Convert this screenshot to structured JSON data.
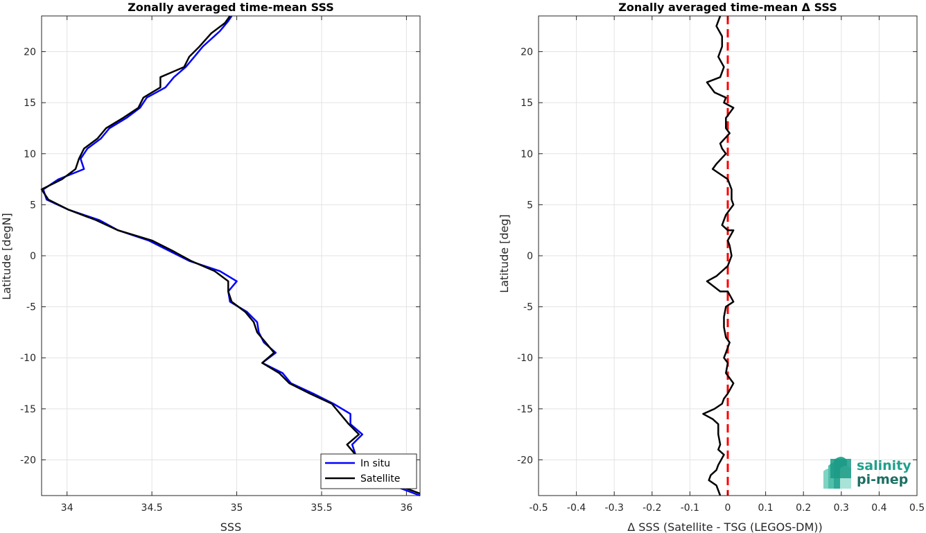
{
  "chart_data": [
    {
      "type": "line",
      "title": "Zonally averaged time-mean SSS",
      "xlabel": "SSS",
      "ylabel": "Latitude [degN]",
      "xlim": [
        33.85,
        36.08
      ],
      "ylim": [
        -23.5,
        23.5
      ],
      "xticks": [
        "34",
        "34.5",
        "35",
        "35.5",
        "36"
      ],
      "yticks": [
        "20",
        "15",
        "10",
        "5",
        "0",
        "-5",
        "-10",
        "-15",
        "-20"
      ],
      "grid": true,
      "legend": {
        "placement": "bottom-right",
        "entries": [
          "In situ",
          "Satellite"
        ]
      },
      "series": [
        {
          "name": "In situ",
          "color": "#0000ff",
          "points": [
            [
              34.97,
              23.5
            ],
            [
              34.95,
              23.0
            ],
            [
              34.9,
              22.0
            ],
            [
              34.8,
              20.5
            ],
            [
              34.75,
              19.5
            ],
            [
              34.7,
              18.5
            ],
            [
              34.63,
              17.5
            ],
            [
              34.58,
              16.5
            ],
            [
              34.47,
              15.5
            ],
            [
              34.43,
              14.5
            ],
            [
              34.35,
              13.5
            ],
            [
              34.25,
              12.5
            ],
            [
              34.2,
              11.5
            ],
            [
              34.12,
              10.5
            ],
            [
              34.08,
              9.5
            ],
            [
              34.1,
              8.5
            ],
            [
              33.95,
              7.5
            ],
            [
              33.86,
              6.5
            ],
            [
              33.88,
              5.5
            ],
            [
              34.01,
              4.5
            ],
            [
              34.19,
              3.5
            ],
            [
              34.3,
              2.5
            ],
            [
              34.48,
              1.5
            ],
            [
              34.6,
              0.5
            ],
            [
              34.72,
              -0.5
            ],
            [
              34.9,
              -1.5
            ],
            [
              35.0,
              -2.5
            ],
            [
              34.95,
              -3.5
            ],
            [
              34.96,
              -4.5
            ],
            [
              35.06,
              -5.5
            ],
            [
              35.12,
              -6.5
            ],
            [
              35.13,
              -7.5
            ],
            [
              35.16,
              -8.5
            ],
            [
              35.23,
              -9.5
            ],
            [
              35.15,
              -10.5
            ],
            [
              35.27,
              -11.5
            ],
            [
              35.32,
              -12.5
            ],
            [
              35.45,
              -13.5
            ],
            [
              35.57,
              -14.5
            ],
            [
              35.67,
              -15.5
            ],
            [
              35.67,
              -16.5
            ],
            [
              35.74,
              -17.5
            ],
            [
              35.68,
              -18.5
            ],
            [
              35.7,
              -19.5
            ],
            [
              35.73,
              -20.5
            ],
            [
              35.8,
              -21.5
            ],
            [
              35.92,
              -22.5
            ],
            [
              36.08,
              -23.5
            ]
          ]
        },
        {
          "name": "Satellite",
          "color": "#000000",
          "points": [
            [
              34.96,
              23.5
            ],
            [
              34.93,
              22.8
            ],
            [
              34.85,
              21.8
            ],
            [
              34.78,
              20.5
            ],
            [
              34.72,
              19.5
            ],
            [
              34.69,
              18.5
            ],
            [
              34.55,
              17.5
            ],
            [
              34.55,
              16.5
            ],
            [
              34.45,
              15.5
            ],
            [
              34.42,
              14.5
            ],
            [
              34.33,
              13.5
            ],
            [
              34.23,
              12.5
            ],
            [
              34.18,
              11.5
            ],
            [
              34.1,
              10.5
            ],
            [
              34.07,
              9.5
            ],
            [
              34.05,
              8.5
            ],
            [
              33.97,
              7.5
            ],
            [
              33.85,
              6.5
            ],
            [
              33.89,
              5.5
            ],
            [
              34.01,
              4.5
            ],
            [
              34.17,
              3.5
            ],
            [
              34.3,
              2.5
            ],
            [
              34.5,
              1.5
            ],
            [
              34.62,
              0.5
            ],
            [
              34.73,
              -0.5
            ],
            [
              34.87,
              -1.5
            ],
            [
              34.95,
              -2.5
            ],
            [
              34.95,
              -3.5
            ],
            [
              34.97,
              -4.5
            ],
            [
              35.05,
              -5.5
            ],
            [
              35.1,
              -6.5
            ],
            [
              35.12,
              -7.5
            ],
            [
              35.17,
              -8.5
            ],
            [
              35.22,
              -9.5
            ],
            [
              35.15,
              -10.5
            ],
            [
              35.25,
              -11.5
            ],
            [
              35.31,
              -12.5
            ],
            [
              35.43,
              -13.5
            ],
            [
              35.56,
              -14.5
            ],
            [
              35.61,
              -15.5
            ],
            [
              35.66,
              -16.5
            ],
            [
              35.72,
              -17.5
            ],
            [
              35.65,
              -18.5
            ],
            [
              35.7,
              -19.5
            ],
            [
              35.72,
              -20.5
            ],
            [
              35.8,
              -21.5
            ],
            [
              35.95,
              -22.5
            ],
            [
              36.08,
              -23.3
            ]
          ]
        }
      ]
    },
    {
      "type": "line",
      "title": "Zonally averaged time-mean Δ SSS",
      "xlabel": "Δ SSS (Satellite - TSG (LEGOS-DM))",
      "ylabel": "Latitude [deg]",
      "xlim": [
        -0.5,
        0.5
      ],
      "ylim": [
        -23.5,
        23.5
      ],
      "xticks": [
        "-0.5",
        "-0.4",
        "-0.3",
        "-0.2",
        "-0.1",
        "0",
        "0.1",
        "0.2",
        "0.3",
        "0.4",
        "0.5"
      ],
      "yticks": [
        "20",
        "15",
        "10",
        "5",
        "0",
        "-5",
        "-10",
        "-15",
        "-20"
      ],
      "grid": true,
      "reference_line": {
        "x": 0,
        "color": "#ff0000",
        "style": "dashed"
      },
      "series": [
        {
          "color": "#000000",
          "points": [
            [
              -0.02,
              23.5
            ],
            [
              -0.03,
              22.5
            ],
            [
              -0.015,
              21.5
            ],
            [
              -0.015,
              20.5
            ],
            [
              -0.025,
              19.5
            ],
            [
              -0.01,
              18.5
            ],
            [
              -0.02,
              17.5
            ],
            [
              -0.055,
              17.0
            ],
            [
              -0.035,
              16.0
            ],
            [
              -0.005,
              15.5
            ],
            [
              -0.01,
              15.0
            ],
            [
              0.015,
              14.5
            ],
            [
              -0.005,
              13.5
            ],
            [
              -0.005,
              12.5
            ],
            [
              0.005,
              12.0
            ],
            [
              -0.02,
              11.0
            ],
            [
              -0.015,
              10.5
            ],
            [
              -0.005,
              10.0
            ],
            [
              -0.03,
              9.0
            ],
            [
              -0.04,
              8.5
            ],
            [
              0.0,
              7.5
            ],
            [
              0.01,
              6.5
            ],
            [
              0.01,
              5.5
            ],
            [
              0.015,
              5.0
            ],
            [
              0.005,
              4.5
            ],
            [
              -0.005,
              4.0
            ],
            [
              -0.01,
              3.5
            ],
            [
              -0.015,
              3.0
            ],
            [
              0.0,
              2.5
            ],
            [
              0.015,
              2.5
            ],
            [
              0.0,
              1.5
            ],
            [
              0.005,
              1.0
            ],
            [
              0.01,
              0.0
            ],
            [
              0.005,
              -0.5
            ],
            [
              0.0,
              -1.0
            ],
            [
              -0.03,
              -2.0
            ],
            [
              -0.055,
              -2.5
            ],
            [
              -0.02,
              -3.5
            ],
            [
              0.0,
              -3.5
            ],
            [
              0.015,
              -4.5
            ],
            [
              -0.005,
              -5.0
            ],
            [
              -0.01,
              -6.0
            ],
            [
              -0.01,
              -7.0
            ],
            [
              -0.005,
              -8.0
            ],
            [
              0.005,
              -8.5
            ],
            [
              -0.005,
              -9.5
            ],
            [
              -0.01,
              -10.0
            ],
            [
              0.0,
              -10.5
            ],
            [
              -0.005,
              -11.5
            ],
            [
              0.015,
              -12.5
            ],
            [
              0.0,
              -13.5
            ],
            [
              -0.01,
              -14.0
            ],
            [
              -0.015,
              -14.5
            ],
            [
              -0.035,
              -15.0
            ],
            [
              -0.065,
              -15.5
            ],
            [
              -0.04,
              -16.0
            ],
            [
              -0.025,
              -16.5
            ],
            [
              -0.025,
              -17.5
            ],
            [
              -0.02,
              -18.5
            ],
            [
              -0.025,
              -19.0
            ],
            [
              -0.01,
              -19.5
            ],
            [
              -0.025,
              -20.5
            ],
            [
              -0.03,
              -21.0
            ],
            [
              -0.045,
              -21.5
            ],
            [
              -0.05,
              -22.0
            ],
            [
              -0.03,
              -22.5
            ],
            [
              -0.025,
              -23.0
            ],
            [
              -0.02,
              -23.5
            ]
          ]
        }
      ]
    }
  ],
  "logo": {
    "line1": "salinity",
    "line2": "pi-mep"
  }
}
